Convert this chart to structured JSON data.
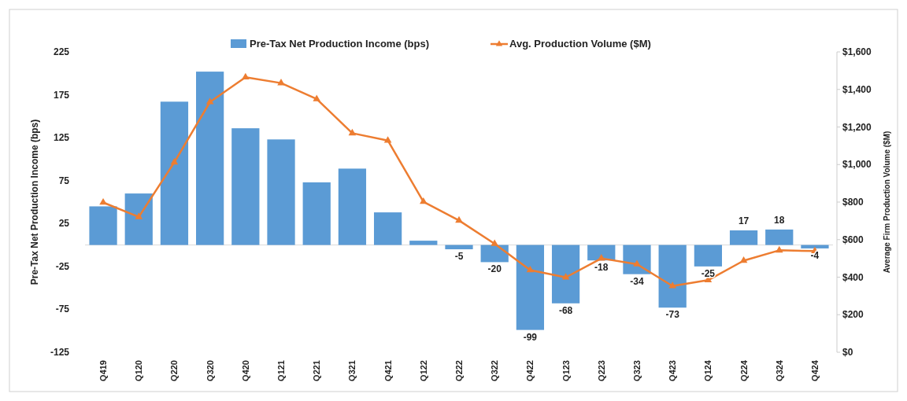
{
  "chart_data": {
    "type": "bar",
    "categories": [
      "Q419",
      "Q120",
      "Q220",
      "Q320",
      "Q420",
      "Q121",
      "Q221",
      "Q321",
      "Q421",
      "Q122",
      "Q222",
      "Q322",
      "Q422",
      "Q123",
      "Q223",
      "Q323",
      "Q423",
      "Q124",
      "Q224",
      "Q324",
      "Q424"
    ],
    "series": [
      {
        "name": "Pre-Tax Net Production Income (bps)",
        "color": "#5b9bd5",
        "values": [
          45,
          60,
          167,
          202,
          136,
          123,
          73,
          89,
          38,
          5,
          -5,
          -20,
          -99,
          -68,
          -18,
          -34,
          -73,
          -25,
          17,
          18,
          -4
        ],
        "value_labels": [
          null,
          null,
          null,
          null,
          null,
          null,
          null,
          null,
          null,
          null,
          "-5",
          "-20",
          "-99",
          "-68",
          "-18",
          "-34",
          "-73",
          "-25",
          "17",
          "18",
          "-4"
        ]
      },
      {
        "name": "Avg. Production Volume ($M)",
        "type": "line",
        "axis": "y2",
        "color": "#ed7d31",
        "marker": "triangle",
        "values": [
          798,
          721,
          1012,
          1333,
          1465,
          1434,
          1349,
          1167,
          1128,
          802,
          702,
          578,
          438,
          399,
          500,
          469,
          353,
          384,
          488,
          543,
          539
        ]
      }
    ],
    "ylabel": "Pre-Tax Net Production Income (bps)",
    "y2label": "Average Firm Production Volume ($M)",
    "ylim": [
      -125,
      225
    ],
    "yticks": [
      -125,
      -75,
      -25,
      25,
      75,
      125,
      175,
      225
    ],
    "y2lim": [
      0,
      1600
    ],
    "y2ticks": [
      {
        "value": 0,
        "label": "$0"
      },
      {
        "value": 200,
        "label": "$200"
      },
      {
        "value": 400,
        "label": "$400"
      },
      {
        "value": 600,
        "label": "$600"
      },
      {
        "value": 800,
        "label": "$800"
      },
      {
        "value": 1000,
        "label": "$1,000"
      },
      {
        "value": 1200,
        "label": "$1,200"
      },
      {
        "value": 1400,
        "label": "$1,400"
      },
      {
        "value": 1600,
        "label": "$1,600"
      }
    ],
    "legend": "top",
    "grid": false
  }
}
